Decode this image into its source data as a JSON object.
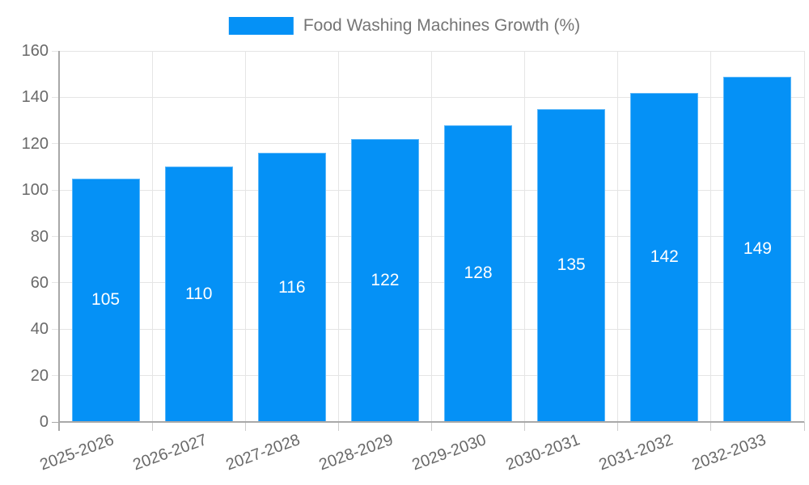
{
  "chart_data": {
    "type": "bar",
    "title": "Food Washing Machines Growth (%)",
    "categories": [
      "2025-2026",
      "2026-2027",
      "2027-2028",
      "2028-2029",
      "2029-2030",
      "2030-2031",
      "2031-2032",
      "2032-2033"
    ],
    "values": [
      105,
      110,
      116,
      122,
      128,
      135,
      142,
      149
    ],
    "bar_value_labels": [
      "105",
      "110",
      "116",
      "122",
      "128",
      "135",
      "142",
      "149"
    ],
    "xlabel": "",
    "ylabel": "",
    "ylim": [
      0,
      160
    ],
    "ytick_step": 20,
    "yticks": [
      "0",
      "20",
      "40",
      "60",
      "80",
      "100",
      "120",
      "140",
      "160"
    ],
    "grid": true,
    "legend_position": "top"
  },
  "legend": {
    "label": "Food Washing Machines Growth (%)"
  },
  "colors": {
    "bar_fill": "#0591f6",
    "bar_edge_highlight": "rgba(255,255,255,0.35)",
    "gridline": "#e5e5e5",
    "axis_line": "#a8a8a8",
    "minor_tick": "#cccccc",
    "tick_label": "#696969",
    "bar_label": "#ffffff",
    "legend_text": "#757575",
    "background": "#ffffff"
  }
}
